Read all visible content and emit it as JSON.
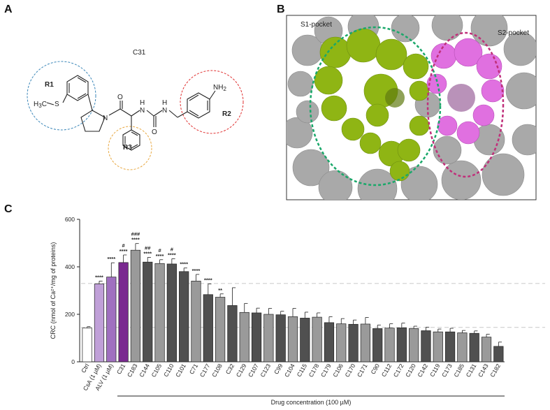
{
  "figure": {
    "panel_a": {
      "label": "A",
      "compound_name": "C31",
      "groups": [
        {
          "name": "R1",
          "color": "#3a86b8"
        },
        {
          "name": "R2",
          "color": "#e03030"
        },
        {
          "name": "R3",
          "color": "#e8a840"
        }
      ],
      "atoms": {
        "o": "O",
        "n1": "N",
        "n2": "N",
        "n3": "N",
        "nh2": "NH",
        "nh2_sub": "2",
        "h_lbl1": "H",
        "h_lbl2": "H",
        "sme": "H",
        "sme_sub": "3",
        "sme_c": "C",
        "s": "S"
      }
    },
    "panel_b": {
      "label": "B",
      "pocket1": "S1-pocket",
      "pocket2": "S2-pocket",
      "colors": {
        "s1": "#8fb514",
        "s2": "#e070e0",
        "surface": "#a9a9a9",
        "s1_ring": "#1aa86a",
        "s2_ring": "#c0307a"
      }
    },
    "panel_c": {
      "label": "C"
    }
  },
  "chart_data": {
    "type": "bar",
    "title": "",
    "ylabel": "CRC (nmol of Ca²⁺/mg of proteins)",
    "xlabel": "Drug concentration (100 µM)",
    "ylim": [
      0,
      600
    ],
    "yticks": [
      "0",
      "200",
      "400",
      "600"
    ],
    "reference_lines": [
      145,
      330
    ],
    "categories": [
      "Ctrl",
      "CsA (1 µM)",
      "ALV (1 µM)",
      "C31",
      "C183",
      "C144",
      "C105",
      "C110",
      "C101",
      "C71",
      "C177",
      "C108",
      "C32",
      "C129",
      "C107",
      "C123",
      "C99",
      "C104",
      "C115",
      "C178",
      "C179",
      "C106",
      "C170",
      "C171",
      "C90",
      "C112",
      "C172",
      "C120",
      "C142",
      "C119",
      "C173",
      "C185",
      "C131",
      "C143",
      "C182"
    ],
    "values": [
      142,
      328,
      357,
      418,
      470,
      420,
      414,
      412,
      380,
      340,
      283,
      272,
      237,
      208,
      206,
      200,
      198,
      190,
      184,
      188,
      165,
      160,
      158,
      159,
      140,
      142,
      143,
      140,
      131,
      126,
      126,
      122,
      120,
      104,
      65
    ],
    "errors": [
      6,
      12,
      60,
      32,
      28,
      20,
      16,
      22,
      15,
      28,
      45,
      14,
      75,
      38,
      20,
      25,
      15,
      35,
      25,
      18,
      25,
      22,
      18,
      28,
      15,
      18,
      20,
      10,
      15,
      12,
      15,
      10,
      10,
      12,
      18
    ],
    "significance": [
      "",
      "****",
      "****",
      "#\n****",
      "###\n****",
      "##\n****",
      "#\n****",
      "#\n****",
      "****",
      "****",
      "****",
      "**",
      "",
      "",
      "",
      "",
      "",
      "",
      "",
      "",
      "",
      "",
      "",
      "",
      "",
      "",
      "",
      "",
      "",
      "",
      "",
      "",
      "",
      "",
      ""
    ],
    "bar_colors": [
      "#ffffff",
      "#c0a0d8",
      "#a070c0",
      "#7a2a90",
      "#9a9a9a",
      "#505050",
      "#9a9a9a",
      "#505050",
      "#505050",
      "#9a9a9a",
      "#505050",
      "#9a9a9a",
      "#505050",
      "#9a9a9a",
      "#505050",
      "#9a9a9a",
      "#505050",
      "#9a9a9a",
      "#505050",
      "#9a9a9a",
      "#505050",
      "#9a9a9a",
      "#505050",
      "#9a9a9a",
      "#505050",
      "#9a9a9a",
      "#505050",
      "#9a9a9a",
      "#505050",
      "#9a9a9a",
      "#505050",
      "#9a9a9a",
      "#505050",
      "#9a9a9a",
      "#505050"
    ]
  }
}
